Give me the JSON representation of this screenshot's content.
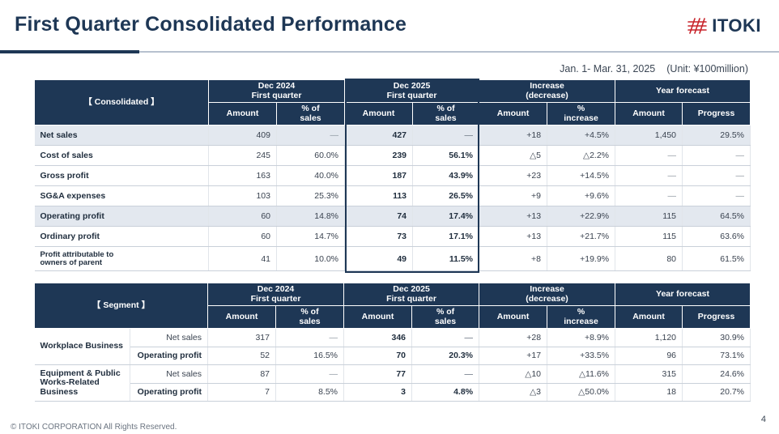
{
  "title": "First Quarter Consolidated Performance",
  "logo": {
    "text": "ITOKI",
    "icon": "itoki-hash-logo-icon"
  },
  "period": {
    "range": "Jan. 1- Mar. 31, 2025",
    "unit": "(Unit: ¥100million)"
  },
  "headers": {
    "prev_period": "Dec 2024\nFirst quarter",
    "curr_period": "Dec 2025\nFirst quarter",
    "change": "Increase\n(decrease)",
    "forecast": "Year forecast",
    "amount": "Amount",
    "pct_sales": "% of\nsales",
    "pct_increase": "%\nincrease",
    "progress": "Progress"
  },
  "consolidated": {
    "corner_label": "【 Consolidated 】",
    "rows": [
      {
        "label": "Net sales",
        "prev_amt": "409",
        "prev_pct": "—",
        "cur_amt": "427",
        "cur_pct": "—",
        "inc_amt": "+18",
        "inc_pct": "+4.5%",
        "fc_amt": "1,450",
        "fc_prog": "29.5%",
        "shade": true
      },
      {
        "label": "Cost of sales",
        "prev_amt": "245",
        "prev_pct": "60.0%",
        "cur_amt": "239",
        "cur_pct": "56.1%",
        "inc_amt": "△5",
        "inc_pct": "△2.2%",
        "fc_amt": "—",
        "fc_prog": "—",
        "shade": false
      },
      {
        "label": "Gross profit",
        "prev_amt": "163",
        "prev_pct": "40.0%",
        "cur_amt": "187",
        "cur_pct": "43.9%",
        "inc_amt": "+23",
        "inc_pct": "+14.5%",
        "fc_amt": "—",
        "fc_prog": "—",
        "shade": false
      },
      {
        "label": "SG&A expenses",
        "prev_amt": "103",
        "prev_pct": "25.3%",
        "cur_amt": "113",
        "cur_pct": "26.5%",
        "inc_amt": "+9",
        "inc_pct": "+9.6%",
        "fc_amt": "—",
        "fc_prog": "—",
        "shade": false
      },
      {
        "label": "Operating profit",
        "prev_amt": "60",
        "prev_pct": "14.8%",
        "cur_amt": "74",
        "cur_pct": "17.4%",
        "inc_amt": "+13",
        "inc_pct": "+22.9%",
        "fc_amt": "115",
        "fc_prog": "64.5%",
        "shade": true
      },
      {
        "label": "Ordinary profit",
        "prev_amt": "60",
        "prev_pct": "14.7%",
        "cur_amt": "73",
        "cur_pct": "17.1%",
        "inc_amt": "+13",
        "inc_pct": "+21.7%",
        "fc_amt": "115",
        "fc_prog": "63.6%",
        "shade": false
      },
      {
        "label": "Profit attributable to\nowners of parent",
        "prev_amt": "41",
        "prev_pct": "10.0%",
        "cur_amt": "49",
        "cur_pct": "11.5%",
        "inc_amt": "+8",
        "inc_pct": "+19.9%",
        "fc_amt": "80",
        "fc_prog": "61.5%",
        "shade": false,
        "small": true
      }
    ]
  },
  "segment": {
    "corner_label": "【 Segment 】",
    "groups": [
      {
        "name": "Workplace Business",
        "rows": [
          {
            "metric": "Net sales",
            "prev_amt": "317",
            "prev_pct": "—",
            "cur_amt": "346",
            "cur_pct": "—",
            "inc_amt": "+28",
            "inc_pct": "+8.9%",
            "fc_amt": "1,120",
            "fc_prog": "30.9%"
          },
          {
            "metric": "Operating profit",
            "prev_amt": "52",
            "prev_pct": "16.5%",
            "cur_amt": "70",
            "cur_pct": "20.3%",
            "inc_amt": "+17",
            "inc_pct": "+33.5%",
            "fc_amt": "96",
            "fc_prog": "73.1%"
          }
        ]
      },
      {
        "name": "Equipment & Public Works-Related Business",
        "rows": [
          {
            "metric": "Net sales",
            "prev_amt": "87",
            "prev_pct": "—",
            "cur_amt": "77",
            "cur_pct": "—",
            "inc_amt": "△10",
            "inc_pct": "△11.6%",
            "fc_amt": "315",
            "fc_prog": "24.6%"
          },
          {
            "metric": "Operating profit",
            "prev_amt": "7",
            "prev_pct": "8.5%",
            "cur_amt": "3",
            "cur_pct": "4.8%",
            "inc_amt": "△3",
            "inc_pct": "△50.0%",
            "fc_amt": "18",
            "fc_prog": "20.7%"
          }
        ]
      }
    ]
  },
  "footer": "© ITOKI CORPORATION All Rights Reserved.",
  "page_number": "4"
}
